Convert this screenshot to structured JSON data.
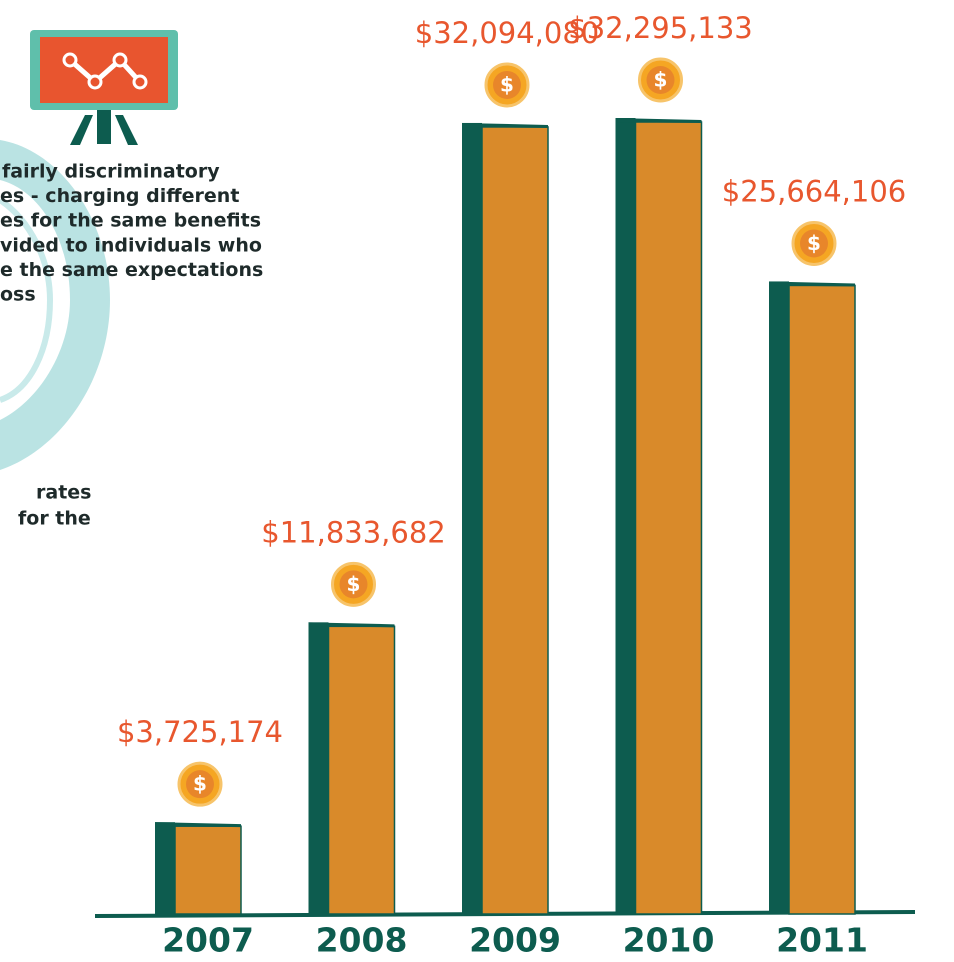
{
  "chart_data": {
    "type": "bar",
    "categories": [
      "2007",
      "2008",
      "2009",
      "2010",
      "2011"
    ],
    "values": [
      3725174,
      11833682,
      32094080,
      32295133,
      25664106
    ],
    "value_labels": [
      "$3,725,174",
      "$11,833,682",
      "$32,094,080",
      "$32,295,133",
      "$25,664,106"
    ],
    "color": "#d98a2a",
    "side_color": "#0d5c4f",
    "label_color": "#e8572e",
    "annotations": [
      [
        "fairly discriminatory",
        "es - charging different",
        "es for the same benefits",
        "vided to individuals who",
        "e the same expectations",
        "oss"
      ],
      [
        "rates",
        "for the"
      ]
    ]
  }
}
